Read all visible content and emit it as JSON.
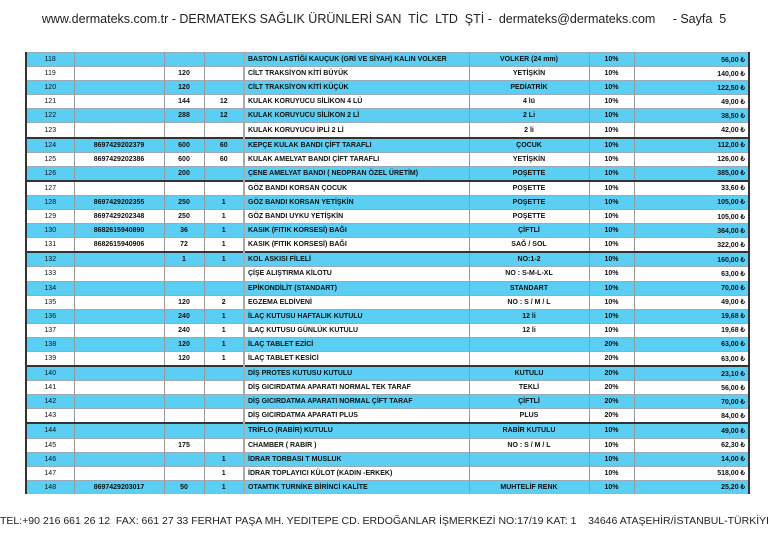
{
  "header": "www.dermateks.com.tr - DERMATEKS SAĞLIK ÜRÜNLERİ SAN  TİC  LTD  ŞTİ -  dermateks@dermateks.com     - Sayfa  5",
  "footer": "TEL:+90 216 661 26 12  FAX: 661 27 33 FERHAT PAŞA MH. YEDITEPE CD. ERDOĞANLAR İŞMERKEZİ NO:17/19 KAT: 1    34646 ATAŞEHİR/İSTANBUL-TÜRKİYE",
  "colors": {
    "highlight_row": "#5bcff3"
  },
  "rows": [
    {
      "no": "118",
      "barcode": "",
      "qty1": "",
      "qty2": "",
      "name": "BASTON LASTİĞİ KAUÇUK (GRİ VE SİYAH) KALIN VOLKER",
      "variant": "VOLKER  (24 mm)",
      "tax": "10%",
      "price": "56,00 ₺"
    },
    {
      "no": "119",
      "barcode": "",
      "qty1": "120",
      "qty2": "",
      "name": "CİLT TRAKSİYON  KİTİ BÜYÜK",
      "variant": "YETİŞKİN",
      "tax": "10%",
      "price": "140,00 ₺"
    },
    {
      "no": "120",
      "barcode": "",
      "qty1": "120",
      "qty2": "",
      "name": "CİLT TRAKSİYON  KİTİ KÜÇÜK",
      "variant": "PEDİATRİK",
      "tax": "10%",
      "price": "122,50 ₺"
    },
    {
      "no": "121",
      "barcode": "",
      "qty1": "144",
      "qty2": "12",
      "name": "KULAK KORUYUCU SİLİKON   4 LÜ",
      "variant": "4  lü",
      "tax": "10%",
      "price": "49,00 ₺"
    },
    {
      "no": "122",
      "barcode": "",
      "qty1": "288",
      "qty2": "12",
      "name": "KULAK KORUYUCU SİLİKON   2 Lİ",
      "variant": "2  Li",
      "tax": "10%",
      "price": "38,50 ₺"
    },
    {
      "no": "123",
      "barcode": "",
      "qty1": "",
      "qty2": "",
      "name": "KULAK KORUYUCU İPLİ          2 Lİ",
      "variant": "2  li",
      "tax": "10%",
      "price": "42,00 ₺"
    },
    {
      "no": "124",
      "barcode": "8697429202379",
      "qty1": "600",
      "qty2": "60",
      "name": "KEPÇE KULAK BANDI ÇİFT TARAFLI",
      "variant": "ÇOCUK",
      "tax": "10%",
      "price": "112,00 ₺"
    },
    {
      "no": "125",
      "barcode": "8697429202386",
      "qty1": "600",
      "qty2": "60",
      "name": "KULAK AMELYAT BANDI  ÇİFT TARAFLI",
      "variant": "YETİŞKİN",
      "tax": "10%",
      "price": "126,00 ₺"
    },
    {
      "no": "126",
      "barcode": "",
      "qty1": "200",
      "qty2": "",
      "name": "ÇENE AMELYAT BANDI ( NEOPRAN ÖZEL ÜRETİM)",
      "variant": "POŞETTE",
      "tax": "10%",
      "price": "385,00 ₺"
    },
    {
      "no": "127",
      "barcode": "",
      "qty1": "",
      "qty2": "",
      "name": "GÖZ BANDI KORSAN  ÇOCUK",
      "variant": "POŞETTE",
      "tax": "10%",
      "price": "33,60 ₺"
    },
    {
      "no": "128",
      "barcode": "8697429202355",
      "qty1": "250",
      "qty2": "1",
      "name": "GÖZ BANDI KORSAN  YETİŞKİN",
      "variant": "POŞETTE",
      "tax": "10%",
      "price": "105,00 ₺"
    },
    {
      "no": "129",
      "barcode": "8697429202348",
      "qty1": "250",
      "qty2": "1",
      "name": "GÖZ BANDI UYKU       YETİŞKİN",
      "variant": "POŞETTE",
      "tax": "10%",
      "price": "105,00 ₺"
    },
    {
      "no": "130",
      "barcode": "8682615940890",
      "qty1": "36",
      "qty2": "1",
      "name": "KASIK (FITIK KORSESİ)  BAĞI",
      "variant": "ÇİFTLİ",
      "tax": "10%",
      "price": "364,00 ₺"
    },
    {
      "no": "131",
      "barcode": "8682615940906",
      "qty1": "72",
      "qty2": "1",
      "name": "KASIK (FITIK KORSESİ)  BAĞI",
      "variant": "SAĞ / SOL",
      "tax": "10%",
      "price": "322,00 ₺"
    },
    {
      "no": "132",
      "barcode": "",
      "qty1": "1",
      "qty2": "1",
      "name": "KOL ASKISI FİLELİ",
      "variant": "NO:1-2",
      "tax": "10%",
      "price": "160,00 ₺"
    },
    {
      "no": "133",
      "barcode": "",
      "qty1": "",
      "qty2": "",
      "name": "ÇİŞE ALIŞTIRMA KİLOTU",
      "variant": "NO : S-M-L-XL",
      "tax": "10%",
      "price": "63,00 ₺"
    },
    {
      "no": "134",
      "barcode": "",
      "qty1": "",
      "qty2": "",
      "name": "EPİKONDİLİT  (STANDART)",
      "variant": "STANDART",
      "tax": "10%",
      "price": "70,00 ₺"
    },
    {
      "no": "135",
      "barcode": "",
      "qty1": "120",
      "qty2": "2",
      "name": "EGZEMA ELDİVENİ",
      "variant": "NO :  S / M  / L",
      "tax": "10%",
      "price": "49,00 ₺"
    },
    {
      "no": "136",
      "barcode": "",
      "qty1": "240",
      "qty2": "1",
      "name": "İLAÇ KUTUSU  HAFTALIK  KUTULU",
      "variant": "12  li",
      "tax": "10%",
      "price": "19,68 ₺"
    },
    {
      "no": "137",
      "barcode": "",
      "qty1": "240",
      "qty2": "1",
      "name": "İLAÇ KUTUSU GÜNLÜK  KUTULU",
      "variant": "12 li",
      "tax": "10%",
      "price": "19,68 ₺"
    },
    {
      "no": "138",
      "barcode": "",
      "qty1": "120",
      "qty2": "1",
      "name": "İLAÇ TABLET EZİCİ",
      "variant": "",
      "tax": "20%",
      "price": "63,00 ₺"
    },
    {
      "no": "139",
      "barcode": "",
      "qty1": "120",
      "qty2": "1",
      "name": "İLAÇ TABLET KESİCİ",
      "variant": "",
      "tax": "20%",
      "price": "63,00 ₺"
    },
    {
      "no": "140",
      "barcode": "",
      "qty1": "",
      "qty2": "",
      "name": "DİŞ PROTES KUTUSU KUTULU",
      "variant": "KUTULU",
      "tax": "20%",
      "price": "23,10 ₺"
    },
    {
      "no": "141",
      "barcode": "",
      "qty1": "",
      "qty2": "",
      "name": "DİŞ GICIRDATMA APARATI NORMAL TEK TARAF",
      "variant": "TEKLİ",
      "tax": "20%",
      "price": "56,00 ₺"
    },
    {
      "no": "142",
      "barcode": "",
      "qty1": "",
      "qty2": "",
      "name": "DİŞ GICIRDATMA APARATI NORMAL ÇİFT TARAF",
      "variant": "ÇİFTLİ",
      "tax": "20%",
      "price": "70,00 ₺"
    },
    {
      "no": "143",
      "barcode": "",
      "qty1": "",
      "qty2": "",
      "name": "DİŞ GICIRDATMA APARATI PLUS",
      "variant": "PLUS",
      "tax": "20%",
      "price": "84,00 ₺"
    },
    {
      "no": "144",
      "barcode": "",
      "qty1": "",
      "qty2": "",
      "name": "TRİFLO (RABİR) KUTULU",
      "variant": "RABİR KUTULU",
      "tax": "10%",
      "price": "49,00 ₺"
    },
    {
      "no": "145",
      "barcode": "",
      "qty1": "175",
      "qty2": "",
      "name": "CHAMBER  ( RABIR )",
      "variant": "NO : S / M / L",
      "tax": "10%",
      "price": "62,30 ₺"
    },
    {
      "no": "146",
      "barcode": "",
      "qty1": "",
      "qty2": "1",
      "name": "İDRAR TORBASI T MUSLUK",
      "variant": "",
      "tax": "10%",
      "price": "14,00 ₺"
    },
    {
      "no": "147",
      "barcode": "",
      "qty1": "",
      "qty2": "1",
      "name": "İDRAR TOPLAYICI KÜLOT (KADIN -ERKEK)",
      "variant": "",
      "tax": "10%",
      "price": "518,00 ₺"
    },
    {
      "no": "148",
      "barcode": "8697429203017",
      "qty1": "50",
      "qty2": "1",
      "name": "OTAMTIK TURNİKE  BİRİNCİ KALİTE",
      "variant": "MUHTELİF RENK",
      "tax": "10%",
      "price": "25,20 ₺"
    }
  ]
}
